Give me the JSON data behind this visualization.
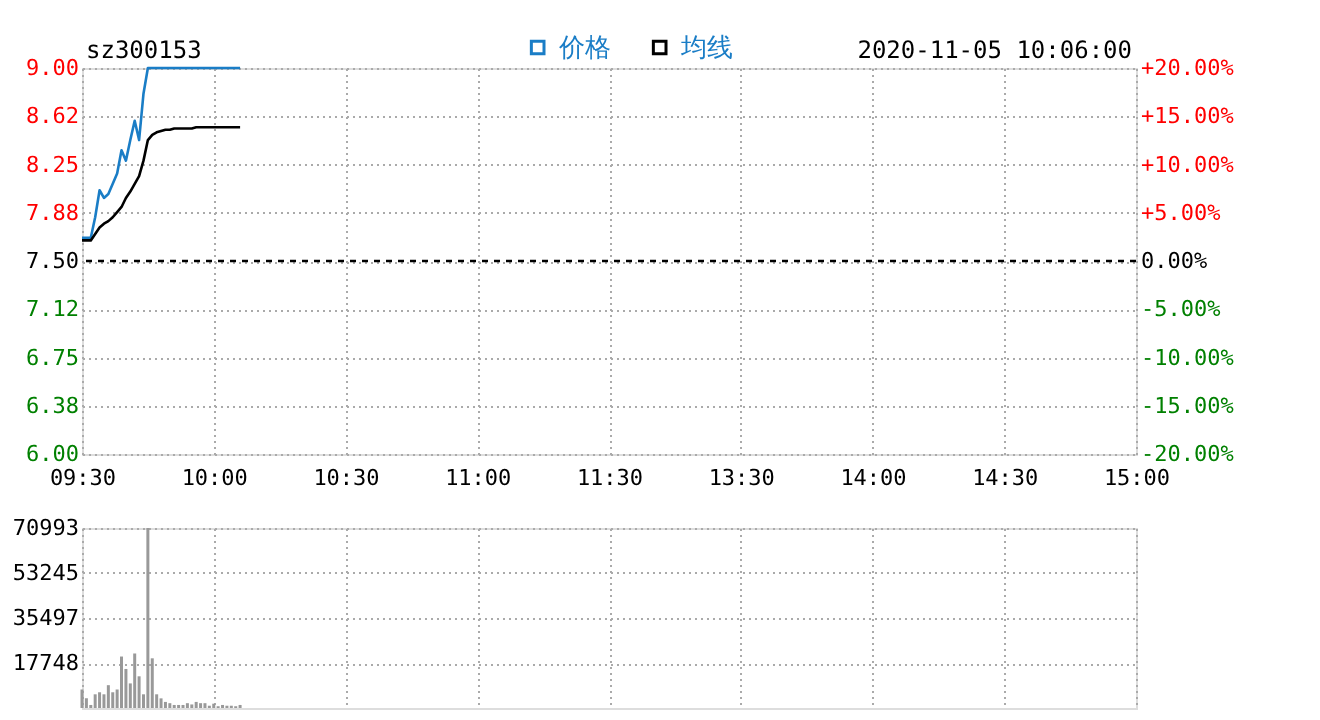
{
  "chart_data": [
    {
      "type": "line",
      "annotations": [
        "sz300153",
        "2020-11-05 10:06:00"
      ],
      "categories": [
        "09:30",
        null,
        null,
        null,
        null,
        null,
        null,
        null,
        null,
        null,
        null,
        null,
        null,
        null,
        null,
        null,
        null,
        null,
        null,
        null,
        null,
        null,
        null,
        null,
        null,
        null,
        null,
        null,
        null,
        null,
        "10:00",
        null,
        null,
        null,
        null,
        null,
        null,
        null,
        null,
        null,
        null,
        null,
        null,
        null,
        null,
        null,
        null,
        null,
        null,
        null,
        null,
        null,
        null,
        null,
        null,
        null,
        null,
        null,
        null,
        null,
        "10:30",
        null,
        null,
        null,
        null,
        null,
        null,
        null,
        null,
        null,
        null,
        null,
        null,
        null,
        null,
        null,
        null,
        null,
        null,
        null,
        null,
        null,
        null,
        null,
        null,
        null,
        null,
        null,
        null,
        null,
        "11:00",
        null,
        null,
        null,
        null,
        null,
        null,
        null,
        null,
        null,
        null,
        null,
        null,
        null,
        null,
        null,
        null,
        null,
        null,
        null,
        null,
        null,
        null,
        null,
        null,
        null,
        null,
        null,
        null,
        null,
        "11:30",
        null,
        null,
        null,
        null,
        null,
        null,
        null,
        null,
        null,
        null,
        null,
        null,
        null,
        null,
        null,
        null,
        null,
        null,
        null,
        null,
        null,
        null,
        null,
        null,
        null,
        null,
        null,
        null,
        null,
        "13:30",
        null,
        null,
        null,
        null,
        null,
        null,
        null,
        null,
        null,
        null,
        null,
        null,
        null,
        null,
        null,
        null,
        null,
        null,
        null,
        null,
        null,
        null,
        null,
        null,
        null,
        null,
        null,
        null,
        null,
        "14:00",
        null,
        null,
        null,
        null,
        null,
        null,
        null,
        null,
        null,
        null,
        null,
        null,
        null,
        null,
        null,
        null,
        null,
        null,
        null,
        null,
        null,
        null,
        null,
        null,
        null,
        null,
        null,
        null,
        null,
        "14:30",
        null,
        null,
        null,
        null,
        null,
        null,
        null,
        null,
        null,
        null,
        null,
        null,
        null,
        null,
        null,
        null,
        null,
        null,
        null,
        null,
        null,
        null,
        null,
        null,
        null,
        null,
        null,
        null,
        null,
        "15:00"
      ],
      "series": [
        {
          "name": "价格",
          "color": "#1a7dc6",
          "values": [
            7.68,
            7.68,
            7.68,
            7.84,
            8.05,
            7.99,
            8.02,
            8.1,
            8.18,
            8.36,
            8.28,
            8.44,
            8.59,
            8.44,
            8.8,
            9.0,
            9.0,
            9.0,
            9.0,
            9.0,
            9.0,
            9.0,
            9.0,
            9.0,
            9.0,
            9.0,
            9.0,
            9.0,
            9.0,
            9.0,
            9.0,
            9.0,
            9.0,
            9.0,
            9.0,
            9.0,
            9.0,
            null,
            null,
            null,
            null,
            null,
            null,
            null,
            null,
            null,
            null,
            null,
            null,
            null,
            null,
            null,
            null,
            null,
            null,
            null,
            null,
            null,
            null,
            null,
            null,
            null,
            null,
            null,
            null,
            null,
            null,
            null,
            null,
            null,
            null,
            null,
            null,
            null,
            null,
            null,
            null,
            null,
            null,
            null,
            null,
            null,
            null,
            null,
            null,
            null,
            null,
            null,
            null,
            null,
            null,
            null,
            null,
            null,
            null,
            null,
            null,
            null,
            null,
            null,
            null,
            null,
            null,
            null,
            null,
            null,
            null,
            null,
            null,
            null,
            null,
            null,
            null,
            null,
            null,
            null,
            null,
            null,
            null,
            null,
            null,
            null,
            null,
            null,
            null,
            null,
            null,
            null,
            null,
            null,
            null,
            null,
            null,
            null,
            null,
            null,
            null,
            null,
            null,
            null,
            null,
            null,
            null,
            null,
            null,
            null,
            null,
            null,
            null,
            null,
            null,
            null,
            null,
            null,
            null,
            null,
            null,
            null,
            null,
            null,
            null,
            null,
            null,
            null,
            null,
            null,
            null,
            null,
            null,
            null,
            null,
            null,
            null,
            null,
            null,
            null,
            null,
            null,
            null,
            null,
            null,
            null,
            null,
            null,
            null,
            null,
            null,
            null,
            null,
            null,
            null,
            null,
            null,
            null,
            null,
            null,
            null,
            null,
            null,
            null,
            null,
            null,
            null,
            null,
            null,
            null,
            null,
            null,
            null,
            null,
            null,
            null,
            null,
            null,
            null,
            null,
            null,
            null,
            null,
            null,
            null,
            null,
            null,
            null,
            null,
            null,
            null,
            null,
            null,
            null,
            null,
            null,
            null,
            null,
            null,
            null,
            null,
            null,
            null,
            null,
            null
          ]
        },
        {
          "name": "均线",
          "color": "#000000",
          "values": [
            7.66,
            7.66,
            7.66,
            7.71,
            7.76,
            7.79,
            7.81,
            7.84,
            7.88,
            7.92,
            7.99,
            8.04,
            8.1,
            8.16,
            8.28,
            8.44,
            8.48,
            8.5,
            8.51,
            8.52,
            8.52,
            8.53,
            8.53,
            8.53,
            8.53,
            8.53,
            8.54,
            8.54,
            8.54,
            8.54,
            8.54,
            8.54,
            8.54,
            8.54,
            8.54,
            8.54,
            8.54,
            null,
            null,
            null,
            null,
            null,
            null,
            null,
            null,
            null,
            null,
            null,
            null,
            null,
            null,
            null,
            null,
            null,
            null,
            null,
            null,
            null,
            null,
            null,
            null,
            null,
            null,
            null,
            null,
            null,
            null,
            null,
            null,
            null,
            null,
            null,
            null,
            null,
            null,
            null,
            null,
            null,
            null,
            null,
            null,
            null,
            null,
            null,
            null,
            null,
            null,
            null,
            null,
            null,
            null,
            null,
            null,
            null,
            null,
            null,
            null,
            null,
            null,
            null,
            null,
            null,
            null,
            null,
            null,
            null,
            null,
            null,
            null,
            null,
            null,
            null,
            null,
            null,
            null,
            null,
            null,
            null,
            null,
            null,
            null,
            null,
            null,
            null,
            null,
            null,
            null,
            null,
            null,
            null,
            null,
            null,
            null,
            null,
            null,
            null,
            null,
            null,
            null,
            null,
            null,
            null,
            null,
            null,
            null,
            null,
            null,
            null,
            null,
            null,
            null,
            null,
            null,
            null,
            null,
            null,
            null,
            null,
            null,
            null,
            null,
            null,
            null,
            null,
            null,
            null,
            null,
            null,
            null,
            null,
            null,
            null,
            null,
            null,
            null,
            null,
            null,
            null,
            null,
            null,
            null,
            null,
            null,
            null,
            null,
            null,
            null,
            null,
            null,
            null,
            null,
            null,
            null,
            null,
            null,
            null,
            null,
            null,
            null,
            null,
            null,
            null,
            null,
            null,
            null,
            null,
            null,
            null,
            null,
            null,
            null,
            null,
            null,
            null,
            null,
            null,
            null,
            null,
            null,
            null,
            null,
            null,
            null,
            null,
            null,
            null,
            null,
            null,
            null,
            null,
            null,
            null,
            null,
            null,
            null,
            null,
            null,
            null,
            null,
            null,
            null
          ]
        }
      ],
      "ylim": [
        6,
        9
      ],
      "yticks": [
        {
          "value": 6,
          "label": "6.00"
        },
        {
          "value": 6.375,
          "label": "6.38"
        },
        {
          "value": 6.75,
          "label": "6.75"
        },
        {
          "value": 7.125,
          "label": "7.12"
        },
        {
          "value": 7.5,
          "label": "7.50"
        },
        {
          "value": 7.875,
          "label": "7.88"
        },
        {
          "value": 8.25,
          "label": "8.25"
        },
        {
          "value": 8.625,
          "label": "8.62"
        },
        {
          "value": 9,
          "label": "9.00"
        }
      ],
      "y2lim": [
        -20,
        20
      ],
      "y2ticks": [
        {
          "value": -20,
          "label": "-20.00%"
        },
        {
          "value": -15,
          "label": "-15.00%"
        },
        {
          "value": -10,
          "label": "-10.00%"
        },
        {
          "value": -5,
          "label": "-5.00%"
        },
        {
          "value": 0,
          "label": "0.00%"
        },
        {
          "value": 5,
          "label": "+5.00%"
        },
        {
          "value": 10,
          "label": "+10.00%"
        },
        {
          "value": 15,
          "label": "+15.00%"
        },
        {
          "value": 20,
          "label": "+20.00%"
        }
      ],
      "ref_lines": [
        {
          "axis": "y",
          "value": 7.5,
          "color": "#000000",
          "line_style": "dashed"
        }
      ],
      "grid": true,
      "legend": "top",
      "line_style": "solid",
      "marker": "none"
    },
    {
      "type": "bar",
      "color": "#999999",
      "categories": [
        null,
        null,
        null,
        null,
        null,
        null,
        null,
        null,
        null,
        null,
        null,
        null,
        null,
        null,
        null,
        null,
        null,
        null,
        null,
        null,
        null,
        null,
        null,
        null,
        null,
        null,
        null,
        null,
        null,
        null,
        null,
        null,
        null,
        null,
        null,
        null,
        null,
        null,
        null,
        null,
        null,
        null,
        null,
        null,
        null,
        null,
        null,
        null,
        null,
        null,
        null,
        null,
        null,
        null,
        null,
        null,
        null,
        null,
        null,
        null,
        null,
        null,
        null,
        null,
        null,
        null,
        null,
        null,
        null,
        null,
        null,
        null,
        null,
        null,
        null,
        null,
        null,
        null,
        null,
        null,
        null,
        null,
        null,
        null,
        null,
        null,
        null,
        null,
        null,
        null,
        null,
        null,
        null,
        null,
        null,
        null,
        null,
        null,
        null,
        null,
        null,
        null,
        null,
        null,
        null,
        null,
        null,
        null,
        null,
        null,
        null,
        null,
        null,
        null,
        null,
        null,
        null,
        null,
        null,
        null,
        null,
        null,
        null,
        null,
        null,
        null,
        null,
        null,
        null,
        null,
        null,
        null,
        null,
        null,
        null,
        null,
        null,
        null,
        null,
        null,
        null,
        null,
        null,
        null,
        null,
        null,
        null,
        null,
        null,
        null,
        null,
        null,
        null,
        null,
        null,
        null,
        null,
        null,
        null,
        null,
        null,
        null,
        null,
        null,
        null,
        null,
        null,
        null,
        null,
        null,
        null,
        null,
        null,
        null,
        null,
        null,
        null,
        null,
        null,
        null,
        null,
        null,
        null,
        null,
        null,
        null,
        null,
        null,
        null,
        null,
        null,
        null,
        null,
        null,
        null,
        null,
        null,
        null,
        null,
        null,
        null,
        null,
        null,
        null,
        null,
        null,
        null,
        null,
        null,
        null,
        null,
        null,
        null,
        null,
        null,
        null,
        null,
        null,
        null,
        null,
        null,
        null,
        null,
        null,
        null,
        null,
        null,
        null,
        null,
        null,
        null,
        null,
        null,
        null,
        null,
        null,
        null,
        null,
        null,
        null,
        null
      ],
      "values": [
        7300,
        3800,
        1200,
        5400,
        6200,
        5400,
        9000,
        6200,
        7300,
        20300,
        15400,
        9700,
        21500,
        12500,
        5400,
        70993,
        19600,
        5400,
        3800,
        2400,
        1900,
        1200,
        1200,
        1200,
        1900,
        1400,
        2400,
        1900,
        1900,
        900,
        1700,
        700,
        1200,
        900,
        900,
        700,
        1200,
        null,
        null,
        null,
        null,
        null,
        null,
        null,
        null,
        null,
        null,
        null,
        null,
        null,
        null,
        null,
        null,
        null,
        null,
        null,
        null,
        null,
        null,
        null,
        null,
        null,
        null,
        null,
        null,
        null,
        null,
        null,
        null,
        null,
        null,
        null,
        null,
        null,
        null,
        null,
        null,
        null,
        null,
        null,
        null,
        null,
        null,
        null,
        null,
        null,
        null,
        null,
        null,
        null,
        null,
        null,
        null,
        null,
        null,
        null,
        null,
        null,
        null,
        null,
        null,
        null,
        null,
        null,
        null,
        null,
        null,
        null,
        null,
        null,
        null,
        null,
        null,
        null,
        null,
        null,
        null,
        null,
        null,
        null,
        null,
        null,
        null,
        null,
        null,
        null,
        null,
        null,
        null,
        null,
        null,
        null,
        null,
        null,
        null,
        null,
        null,
        null,
        null,
        null,
        null,
        null,
        null,
        null,
        null,
        null,
        null,
        null,
        null,
        null,
        null,
        null,
        null,
        null,
        null,
        null,
        null,
        null,
        null,
        null,
        null,
        null,
        null,
        null,
        null,
        null,
        null,
        null,
        null,
        null,
        null,
        null,
        null,
        null,
        null,
        null,
        null,
        null,
        null,
        null,
        null,
        null,
        null,
        null,
        null,
        null,
        null,
        null,
        null,
        null,
        null,
        null,
        null,
        null,
        null,
        null,
        null,
        null,
        null,
        null,
        null,
        null,
        null,
        null,
        null,
        null,
        null,
        null,
        null,
        null,
        null,
        null,
        null,
        null,
        null,
        null,
        null,
        null,
        null,
        null,
        null,
        null,
        null,
        null,
        null,
        null,
        null,
        null,
        null,
        null,
        null,
        null,
        null,
        null,
        null,
        null,
        null,
        null,
        null,
        null,
        null
      ],
      "ylim": [
        0,
        70993
      ],
      "yticks": [
        17748,
        35497,
        53245,
        70993
      ],
      "grid": true,
      "tick_labels": "y"
    }
  ]
}
